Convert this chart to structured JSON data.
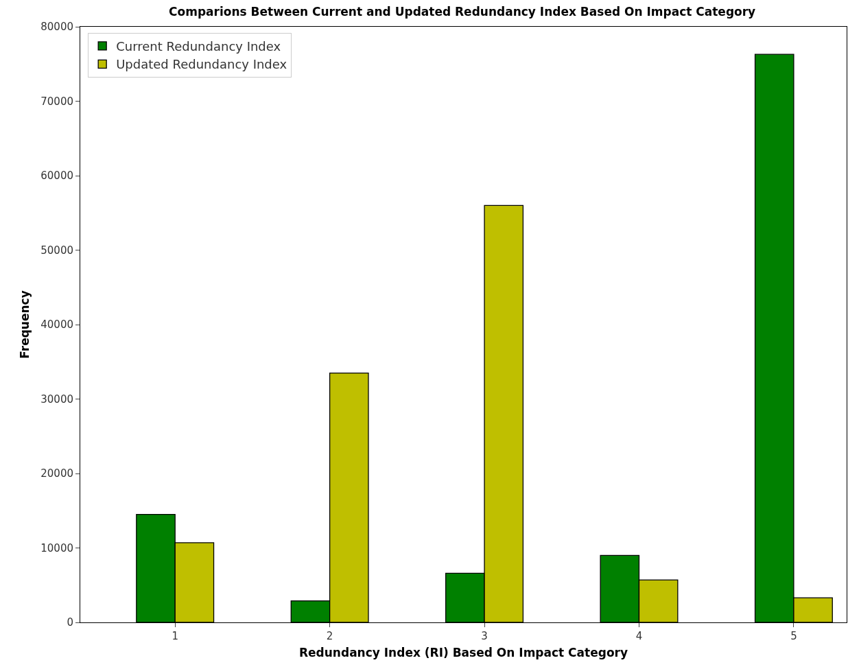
{
  "chart_data": {
    "type": "bar",
    "title": "Comparions Between Current and Updated Redundancy Index Based On Impact Category",
    "xlabel": "Redundancy Index (RI) Based On Impact Category",
    "ylabel": "Frequency",
    "categories": [
      "1",
      "2",
      "3",
      "4",
      "5"
    ],
    "series": [
      {
        "name": "Current Redundancy Index",
        "color": "#008000",
        "values": [
          14500,
          2900,
          6600,
          9000,
          76300
        ]
      },
      {
        "name": "Updated Redundancy Index",
        "color": "#bfbf00",
        "values": [
          10700,
          33500,
          56000,
          5700,
          3300
        ]
      }
    ],
    "ylim": [
      0,
      80000
    ],
    "yticks": [
      0,
      10000,
      20000,
      30000,
      40000,
      50000,
      60000,
      70000,
      80000
    ],
    "grid": false,
    "legend": "top left"
  }
}
